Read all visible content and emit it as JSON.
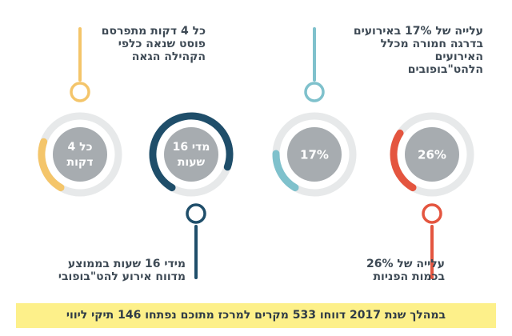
{
  "colors": {
    "gray_track": "#e7e9ea",
    "inner_gray": "#a7acb0",
    "text_dark": "#3e4a55",
    "banner_bg": "#fdf08a",
    "yellow": "#f4c56a",
    "navy": "#1f4e6a",
    "teal": "#7fc1cc",
    "red": "#e4553f"
  },
  "items": [
    {
      "id": "every-4-minutes",
      "color": "#f4c56a",
      "progress": 0.22,
      "inner_lines": [
        "כל 4",
        "דקות"
      ],
      "caption_lines": [
        "כל 4 דקות מתפרסם",
        "פוסט שנאה כלפי",
        "הקהילה הגאה"
      ]
    },
    {
      "id": "every-16-hours",
      "color": "#1f4e6a",
      "progress": 0.72,
      "inner_lines": [
        "מדי 16",
        "שעות"
      ],
      "caption_lines": [
        "מידי 16 שעות בממוצע",
        "מדווח אירוע להט\"בופובי"
      ]
    },
    {
      "id": "seventeen-percent",
      "color": "#7fc1cc",
      "progress": 0.17,
      "inner_lines": [
        "17%"
      ],
      "caption_lines": [
        "עלייה של 17% באירועים",
        "בדרגה חמורה מכלל",
        "האירועים",
        "הלהט\"בופובים"
      ]
    },
    {
      "id": "twenty-six-percent",
      "color": "#e4553f",
      "progress": 0.26,
      "inner_lines": [
        "26%"
      ],
      "caption_lines": [
        "עלייה של 26%",
        "בכמות הפניות"
      ]
    }
  ],
  "banner": "במהלך שנת 2017 דווחו 533 מקרים למרכז מתוכם נפתחו 146 תיקי ליווי"
}
